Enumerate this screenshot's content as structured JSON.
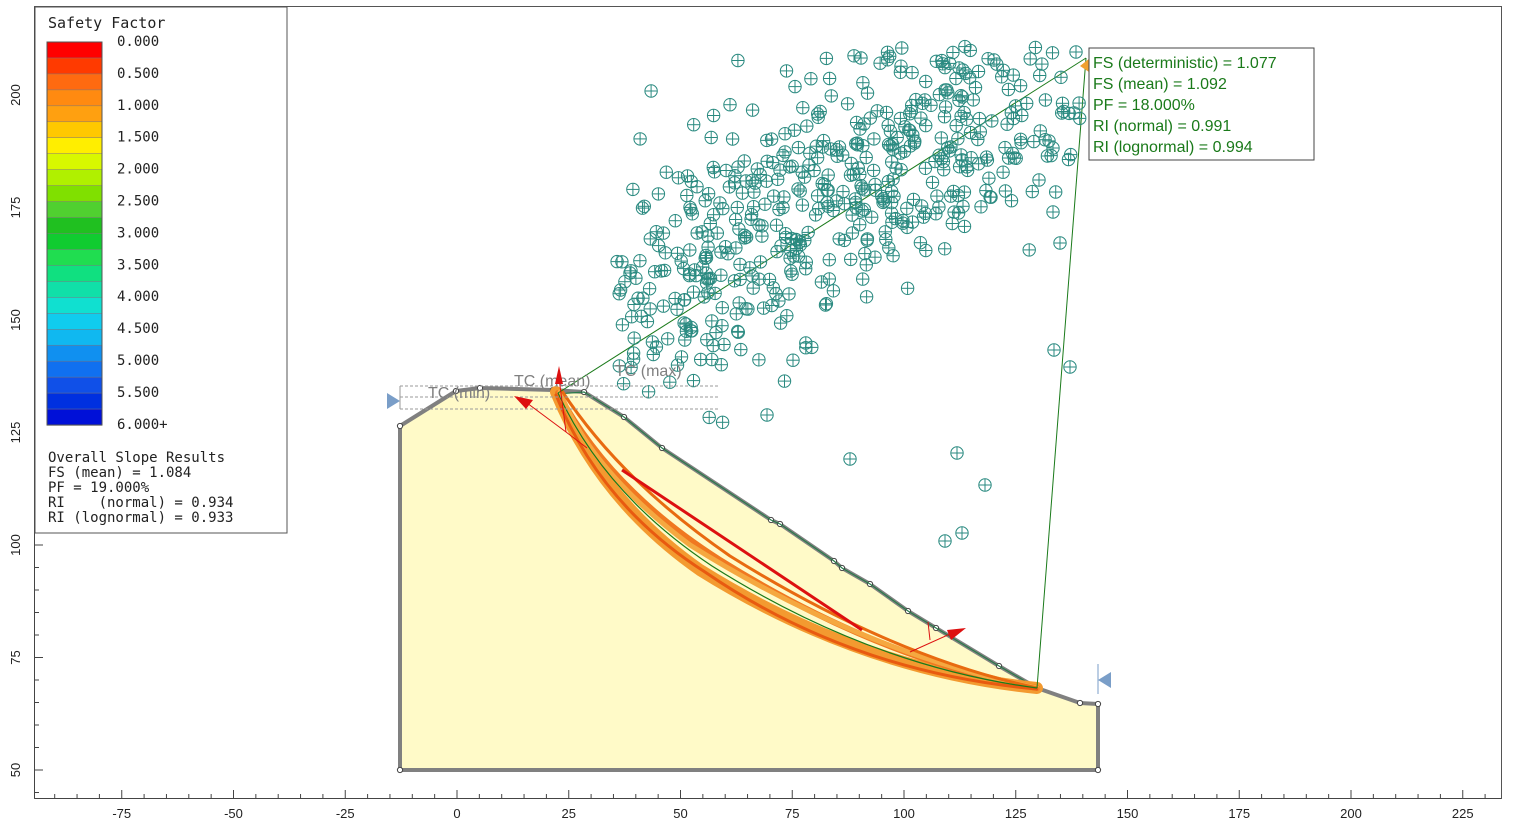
{
  "legend": {
    "title": "Safety Factor",
    "labels": [
      "0.000",
      "0.500",
      "1.000",
      "1.500",
      "2.000",
      "2.500",
      "3.000",
      "3.500",
      "4.000",
      "4.500",
      "5.000",
      "5.500",
      "6.000+"
    ],
    "colors": [
      "#ff0000",
      "#ff3a00",
      "#ff6a10",
      "#ff8a10",
      "#ffa010",
      "#ffc800",
      "#ffee00",
      "#d8f800",
      "#b0f000",
      "#80e000",
      "#50d030",
      "#20c020",
      "#10cc30",
      "#20dd50",
      "#10e080",
      "#10e0a8",
      "#10e0d0",
      "#10ccee",
      "#10b8f0",
      "#1090f0",
      "#1070f0",
      "#1050e8",
      "#0030e0",
      "#0010d8"
    ]
  },
  "overall_results": {
    "title": "Overall Slope Results",
    "lines": [
      "FS (mean) = 1.084",
      "PF = 19.000%",
      "RI    (normal) = 0.934",
      "RI (lognormal) = 0.933"
    ]
  },
  "surface_info": {
    "lines": [
      "FS (deterministic) = 1.077",
      "FS (mean) = 1.092",
      "PF = 18.000%",
      "RI (normal) = 0.991",
      "RI (lognormal) = 0.994"
    ]
  },
  "tension_crack_labels": {
    "min": "TC (min)",
    "mean": "TC (mean)",
    "max": "TC (max)"
  },
  "x_axis": {
    "ticks": [
      -75,
      -50,
      -25,
      0,
      25,
      50,
      75,
      100,
      125,
      150,
      175,
      200,
      225
    ]
  },
  "y_axis": {
    "ticks": [
      50,
      75,
      100,
      125,
      150,
      175,
      200
    ]
  },
  "colors": {
    "slope_fill": "#fffac8",
    "boundary": "#808080",
    "slip_band": "#f08020",
    "slip_center": "#1a7a1a",
    "center_marker": "#2a8a80",
    "force_arrow": "#dd1010",
    "limit_marker": "#7a9ec8"
  }
}
